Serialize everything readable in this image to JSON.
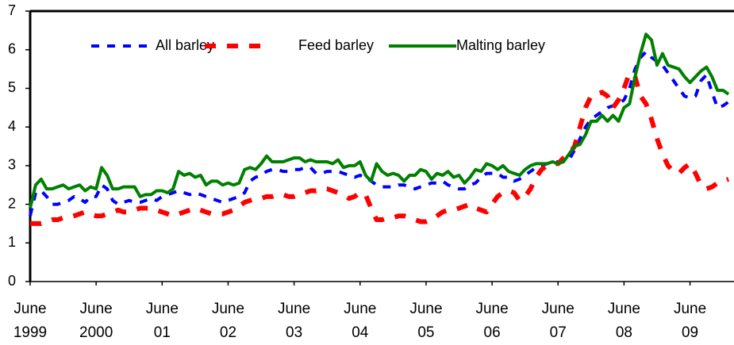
{
  "chart_data": {
    "type": "line",
    "categories": [
      "June 1999",
      null,
      null,
      null,
      null,
      null,
      null,
      null,
      null,
      null,
      null,
      null,
      "June 2000",
      null,
      null,
      null,
      null,
      null,
      null,
      null,
      null,
      null,
      null,
      null,
      "June 01",
      null,
      null,
      null,
      null,
      null,
      null,
      null,
      null,
      null,
      null,
      null,
      "June 02",
      null,
      null,
      null,
      null,
      null,
      null,
      null,
      null,
      null,
      null,
      null,
      "June 03",
      null,
      null,
      null,
      null,
      null,
      null,
      null,
      null,
      null,
      null,
      null,
      "June 04",
      null,
      null,
      null,
      null,
      null,
      null,
      null,
      null,
      null,
      null,
      null,
      "June 05",
      null,
      null,
      null,
      null,
      null,
      null,
      null,
      null,
      null,
      null,
      null,
      "June 06",
      null,
      null,
      null,
      null,
      null,
      null,
      null,
      null,
      null,
      null,
      null,
      "June 07",
      null,
      null,
      null,
      null,
      null,
      null,
      null,
      null,
      null,
      null,
      null,
      "June 08",
      null,
      null,
      null,
      null,
      null,
      null,
      null,
      null,
      null,
      null,
      null,
      "June 09",
      null,
      null,
      null,
      null,
      null,
      null,
      null
    ],
    "series": [
      {
        "name": "All barley",
        "color": "#0000ff",
        "linestyle": "dashed",
        "values": [
          1.7,
          2.3,
          2.35,
          2.2,
          2.0,
          2.0,
          2.05,
          2.1,
          2.2,
          2.15,
          2.05,
          2.2,
          2.2,
          2.5,
          2.4,
          2.1,
          2.0,
          2.05,
          2.1,
          2.05,
          2.05,
          2.1,
          2.15,
          2.1,
          2.2,
          2.25,
          2.3,
          2.35,
          2.3,
          2.25,
          2.3,
          2.25,
          2.2,
          2.15,
          2.1,
          2.05,
          2.1,
          2.15,
          2.2,
          2.3,
          2.6,
          2.7,
          2.75,
          2.85,
          2.9,
          2.9,
          2.85,
          2.85,
          2.9,
          2.9,
          2.95,
          2.95,
          2.8,
          2.8,
          2.85,
          2.85,
          2.85,
          2.8,
          2.75,
          2.7,
          2.75,
          2.7,
          2.6,
          2.5,
          2.45,
          2.45,
          2.45,
          2.5,
          2.5,
          2.45,
          2.4,
          2.45,
          2.5,
          2.55,
          2.55,
          2.6,
          2.5,
          2.45,
          2.4,
          2.4,
          2.5,
          2.55,
          2.7,
          2.8,
          2.8,
          2.8,
          2.7,
          2.7,
          2.6,
          2.65,
          2.75,
          2.85,
          2.95,
          3.0,
          3.05,
          3.1,
          3.1,
          3.1,
          3.15,
          3.4,
          3.7,
          4.0,
          4.2,
          4.3,
          4.4,
          4.5,
          4.55,
          4.6,
          4.7,
          5.0,
          5.5,
          5.8,
          5.95,
          5.8,
          5.7,
          5.6,
          5.4,
          5.2,
          5.0,
          4.8,
          4.75,
          4.8,
          5.2,
          5.35,
          4.9,
          4.5,
          4.55,
          4.65
        ]
      },
      {
        "name": "Feed barley",
        "color": "#ff0000",
        "linestyle": "dashed",
        "values": [
          1.5,
          1.5,
          1.5,
          1.55,
          1.6,
          1.6,
          1.65,
          1.65,
          1.7,
          1.75,
          1.8,
          1.75,
          1.7,
          1.7,
          1.75,
          1.8,
          1.85,
          1.8,
          1.8,
          1.85,
          1.9,
          1.9,
          1.9,
          1.85,
          1.8,
          1.75,
          1.7,
          1.75,
          1.8,
          1.85,
          1.9,
          1.85,
          1.8,
          1.75,
          1.75,
          1.75,
          1.8,
          1.85,
          1.95,
          2.05,
          2.1,
          2.15,
          2.15,
          2.2,
          2.2,
          2.25,
          2.25,
          2.2,
          2.2,
          2.25,
          2.3,
          2.35,
          2.35,
          2.4,
          2.4,
          2.35,
          2.3,
          2.25,
          2.15,
          2.2,
          2.3,
          2.25,
          1.9,
          1.6,
          1.6,
          1.65,
          1.65,
          1.7,
          1.7,
          1.65,
          1.6,
          1.55,
          1.55,
          1.6,
          1.7,
          1.8,
          1.85,
          1.85,
          1.9,
          1.95,
          2.0,
          1.9,
          1.85,
          1.8,
          2.0,
          2.2,
          2.3,
          2.35,
          2.3,
          2.1,
          2.2,
          2.4,
          2.7,
          2.9,
          3.0,
          3.05,
          3.05,
          3.2,
          3.3,
          3.5,
          4.0,
          4.5,
          4.8,
          4.85,
          4.9,
          4.8,
          4.5,
          4.7,
          5.0,
          5.4,
          5.3,
          4.8,
          4.6,
          4.2,
          3.7,
          3.3,
          3.0,
          2.85,
          2.8,
          2.95,
          3.05,
          2.8,
          2.5,
          2.4,
          2.45,
          2.55,
          2.6,
          2.65
        ]
      },
      {
        "name": "Malting barley",
        "color": "#008000",
        "linestyle": "solid",
        "values": [
          1.9,
          2.5,
          2.65,
          2.4,
          2.4,
          2.45,
          2.5,
          2.4,
          2.45,
          2.5,
          2.35,
          2.45,
          2.4,
          2.95,
          2.75,
          2.4,
          2.4,
          2.45,
          2.45,
          2.45,
          2.2,
          2.25,
          2.25,
          2.35,
          2.35,
          2.3,
          2.4,
          2.85,
          2.75,
          2.8,
          2.7,
          2.75,
          2.5,
          2.6,
          2.6,
          2.5,
          2.55,
          2.5,
          2.55,
          2.9,
          2.95,
          2.9,
          3.05,
          3.25,
          3.1,
          3.1,
          3.1,
          3.15,
          3.2,
          3.2,
          3.1,
          3.15,
          3.1,
          3.1,
          3.1,
          3.05,
          3.15,
          2.95,
          3.0,
          3.0,
          3.1,
          2.75,
          2.6,
          3.05,
          2.85,
          2.75,
          2.8,
          2.75,
          2.6,
          2.75,
          2.75,
          2.9,
          2.85,
          2.65,
          2.8,
          2.75,
          2.85,
          2.7,
          2.75,
          2.55,
          2.7,
          2.9,
          2.85,
          3.05,
          3.0,
          2.9,
          3.0,
          2.85,
          2.8,
          2.75,
          2.9,
          3.0,
          3.05,
          3.05,
          3.05,
          3.1,
          3.05,
          3.1,
          3.3,
          3.5,
          3.55,
          3.8,
          4.15,
          4.15,
          4.3,
          4.15,
          4.3,
          4.15,
          4.5,
          4.6,
          5.3,
          5.9,
          6.4,
          6.25,
          5.6,
          5.9,
          5.6,
          5.55,
          5.5,
          5.3,
          5.15,
          5.3,
          5.45,
          5.55,
          5.3,
          4.95,
          4.95,
          4.85
        ]
      }
    ],
    "ylim": [
      0,
      7
    ],
    "yticks": [
      0,
      1,
      2,
      3,
      4,
      5,
      6,
      7
    ],
    "legend": "top"
  }
}
